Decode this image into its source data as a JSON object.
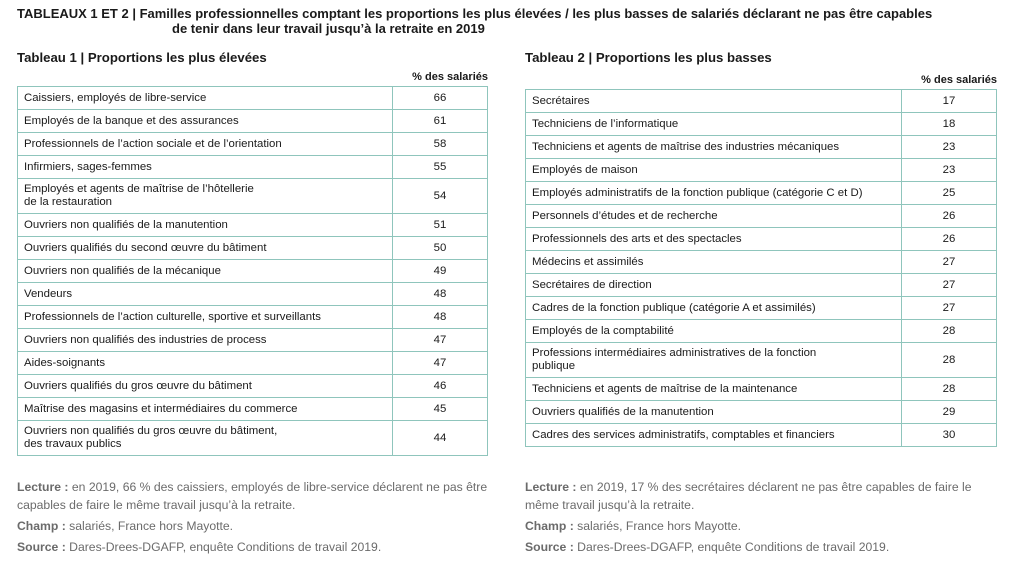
{
  "title_line1": "TABLEAUX 1 ET 2 | Familles professionnelles comptant les proportions les plus élevées / les plus basses de salariés déclarant ne pas être capables",
  "title_line2": "de tenir dans leur travail jusqu’à la retraite en 2019",
  "col_header": "% des salariés",
  "table1": {
    "title": "Tableau 1 | Proportions les plus élevées",
    "rows": [
      {
        "label": "Caissiers, employés de libre-service",
        "value": "66"
      },
      {
        "label": "Employés de la banque et des assurances",
        "value": "61"
      },
      {
        "label": "Professionnels de l’action sociale et de l’orientation",
        "value": "58"
      },
      {
        "label": "Infirmiers, sages-femmes",
        "value": "55"
      },
      {
        "label": "Employés et agents de maîtrise de l’hôtellerie\nde la restauration",
        "value": "54"
      },
      {
        "label": "Ouvriers non qualifiés de la manutention",
        "value": "51"
      },
      {
        "label": "Ouvriers qualifiés du second œuvre du bâtiment",
        "value": "50"
      },
      {
        "label": "Ouvriers non qualifiés de la mécanique",
        "value": "49"
      },
      {
        "label": "Vendeurs",
        "value": "48"
      },
      {
        "label": "Professionnels de l’action culturelle, sportive et surveillants",
        "value": "48"
      },
      {
        "label": "Ouvriers non qualifiés des industries de process",
        "value": "47"
      },
      {
        "label": "Aides-soignants",
        "value": "47"
      },
      {
        "label": "Ouvriers qualifiés du gros œuvre du bâtiment",
        "value": "46"
      },
      {
        "label": "Maîtrise des magasins et intermédiaires du commerce",
        "value": "45"
      },
      {
        "label": "Ouvriers non qualifiés du gros œuvre du bâtiment,\ndes travaux publics",
        "value": "44"
      }
    ]
  },
  "table2": {
    "title": "Tableau 2 | Proportions les plus basses",
    "rows": [
      {
        "label": "Secrétaires",
        "value": "17"
      },
      {
        "label": "Techniciens de l’informatique",
        "value": "18"
      },
      {
        "label": "Techniciens et agents de maîtrise des industries mécaniques",
        "value": "23"
      },
      {
        "label": "Employés de maison",
        "value": "23"
      },
      {
        "label": "Employés administratifs de la fonction publique (catégorie C et D)",
        "value": "25"
      },
      {
        "label": "Personnels d’études et de recherche",
        "value": "26"
      },
      {
        "label": "Professionnels des arts et des spectacles",
        "value": "26"
      },
      {
        "label": "Médecins et assimilés",
        "value": "27"
      },
      {
        "label": "Secrétaires de direction",
        "value": "27"
      },
      {
        "label": "Cadres de la fonction publique (catégorie A et assimilés)",
        "value": "27"
      },
      {
        "label": "Employés de la comptabilité",
        "value": "28"
      },
      {
        "label": "Professions intermédiaires administratives de la fonction\npublique",
        "value": "28"
      },
      {
        "label": "Techniciens et agents de maîtrise de la maintenance",
        "value": "28"
      },
      {
        "label": "Ouvriers qualifiés de la manutention",
        "value": "29"
      },
      {
        "label": "Cadres des services administratifs, comptables et financiers",
        "value": "30"
      }
    ]
  },
  "notes_left": {
    "lecture_label": "Lecture :",
    "lecture_text": " en 2019, 66 % des caissiers, employés de libre-service déclarent ne pas être capables de faire le même travail jusqu’à la retraite.",
    "champ_label": "Champ :",
    "champ_text": " salariés, France hors Mayotte.",
    "source_label": "Source :",
    "source_text": " Dares-Drees-DGAFP, enquête Conditions de travail 2019."
  },
  "notes_right": {
    "lecture_label": "Lecture :",
    "lecture_text": " en 2019, 17 % des secrétaires déclarent ne pas être capables de faire le même travail jusqu’à la retraite.",
    "champ_label": "Champ :",
    "champ_text": " salariés, France hors Mayotte.",
    "source_label": "Source :",
    "source_text": " Dares-Drees-DGAFP, enquête Conditions de travail 2019."
  }
}
